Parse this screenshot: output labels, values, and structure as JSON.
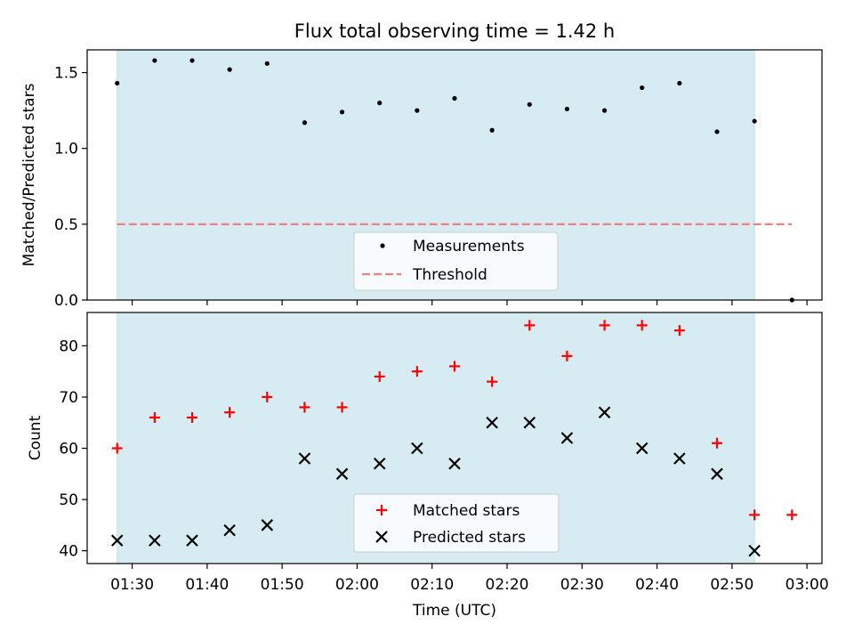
{
  "chart_data": [
    {
      "type": "scatter",
      "title": "Flux total observing time = 1.42 h",
      "ylabel": "Matched/Predicted stars",
      "xlabel": "",
      "xlim": [
        "01:24",
        "03:02"
      ],
      "ylim": [
        0,
        1.65
      ],
      "yticks": [
        0.0,
        0.5,
        1.0,
        1.5
      ],
      "ytick_labels": [
        "0.0",
        "0.5",
        "1.0",
        "1.5"
      ],
      "shaded_span": [
        "01:28",
        "02:53"
      ],
      "shade_color": "#add8e6",
      "legend_position": "lower center",
      "series": [
        {
          "name": "Measurements",
          "marker": "dot",
          "color": "#000000",
          "x": [
            "01:28",
            "01:33",
            "01:38",
            "01:43",
            "01:48",
            "01:53",
            "01:58",
            "02:03",
            "02:08",
            "02:13",
            "02:18",
            "02:23",
            "02:28",
            "02:33",
            "02:38",
            "02:43",
            "02:48",
            "02:53",
            "02:58"
          ],
          "y": [
            1.43,
            1.58,
            1.58,
            1.52,
            1.56,
            1.17,
            1.24,
            1.3,
            1.25,
            1.33,
            1.12,
            1.29,
            1.26,
            1.25,
            1.4,
            1.43,
            1.11,
            1.18,
            0.0
          ]
        },
        {
          "name": "Threshold",
          "marker": "dashed-line",
          "color": "#f08080",
          "x": [
            "01:28",
            "02:58"
          ],
          "y": [
            0.5,
            0.5
          ]
        }
      ]
    },
    {
      "type": "scatter",
      "ylabel": "Count",
      "xlabel": "Time (UTC)",
      "xlim": [
        "01:24",
        "03:02"
      ],
      "ylim": [
        37.5,
        86.5
      ],
      "yticks": [
        40,
        50,
        60,
        70,
        80
      ],
      "ytick_labels": [
        "40",
        "50",
        "60",
        "70",
        "80"
      ],
      "xticks": [
        "01:30",
        "01:40",
        "01:50",
        "02:00",
        "02:10",
        "02:20",
        "02:30",
        "02:40",
        "02:50",
        "03:00"
      ],
      "shaded_span": [
        "01:28",
        "02:53"
      ],
      "shade_color": "#add8e6",
      "legend_position": "lower center",
      "series": [
        {
          "name": "Matched stars",
          "marker": "plus",
          "color": "#ff0000",
          "x": [
            "01:28",
            "01:33",
            "01:38",
            "01:43",
            "01:48",
            "01:53",
            "01:58",
            "02:03",
            "02:08",
            "02:13",
            "02:18",
            "02:23",
            "02:28",
            "02:33",
            "02:38",
            "02:43",
            "02:48",
            "02:53",
            "02:58"
          ],
          "y": [
            60,
            66,
            66,
            67,
            70,
            68,
            68,
            74,
            75,
            76,
            73,
            84,
            78,
            84,
            84,
            83,
            61,
            47,
            47
          ]
        },
        {
          "name": "Predicted stars",
          "marker": "x",
          "color": "#000000",
          "x": [
            "01:28",
            "01:33",
            "01:38",
            "01:43",
            "01:48",
            "01:53",
            "01:58",
            "02:03",
            "02:08",
            "02:13",
            "02:18",
            "02:23",
            "02:28",
            "02:33",
            "02:38",
            "02:43",
            "02:48",
            "02:53"
          ],
          "y": [
            42,
            42,
            42,
            44,
            45,
            58,
            55,
            57,
            60,
            57,
            65,
            65,
            62,
            67,
            60,
            58,
            55,
            40
          ]
        }
      ]
    }
  ]
}
